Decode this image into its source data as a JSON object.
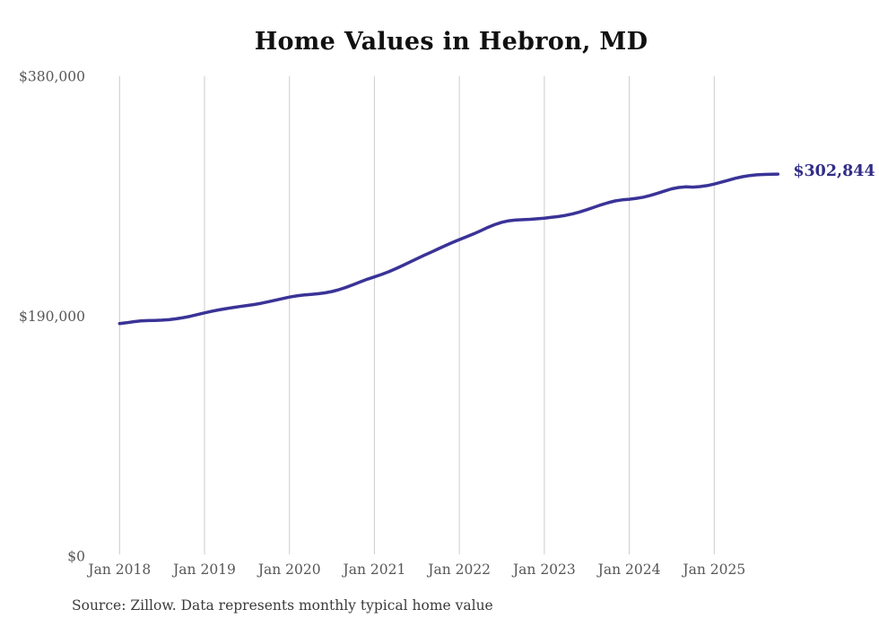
{
  "chart_data": {
    "type": "line",
    "title": "Home Values in Hebron, MD",
    "source_note": "Source: Zillow. Data represents monthly typical home value",
    "end_label": "$302,844",
    "latest_value": 302844,
    "x_start": "Jan 2018",
    "x_end": "Oct 2025",
    "xlabel": "",
    "ylabel": "",
    "ylim": [
      0,
      380000
    ],
    "grid": "vertical-only",
    "legend": "none",
    "line_color": "#3a3397",
    "end_label_color": "#312d87",
    "grid_color": "#cccccc",
    "axis_label_color": "#575757",
    "yticks": [
      {
        "value": 0,
        "label": "$0"
      },
      {
        "value": 190000,
        "label": "$190,000"
      },
      {
        "value": 380000,
        "label": "$380,000"
      }
    ],
    "xticks": [
      "Jan 2018",
      "Jan 2019",
      "Jan 2020",
      "Jan 2021",
      "Jan 2022",
      "Jan 2023",
      "Jan 2024",
      "Jan 2025"
    ],
    "values": [
      184500,
      185200,
      186000,
      186600,
      186900,
      187000,
      187200,
      187600,
      188300,
      189200,
      190300,
      191600,
      193000,
      194200,
      195300,
      196300,
      197200,
      198000,
      198800,
      199600,
      200600,
      201800,
      203000,
      204300,
      205500,
      206400,
      207100,
      207600,
      208100,
      208800,
      209900,
      211400,
      213200,
      215300,
      217500,
      219600,
      221500,
      223400,
      225500,
      227900,
      230500,
      233200,
      235900,
      238500,
      241000,
      243600,
      246200,
      248700,
      251000,
      253200,
      255500,
      258000,
      260600,
      262900,
      264700,
      265900,
      266500,
      266800,
      267100,
      267500,
      268000,
      268600,
      269300,
      270200,
      271400,
      272900,
      274700,
      276600,
      278500,
      280200,
      281600,
      282500,
      283000,
      283700,
      284600,
      286000,
      287700,
      289500,
      291200,
      292300,
      292800,
      292600,
      293000,
      293800,
      295000,
      296500,
      298000,
      299600,
      300800,
      301700,
      302300,
      302600,
      302750,
      302844
    ]
  }
}
